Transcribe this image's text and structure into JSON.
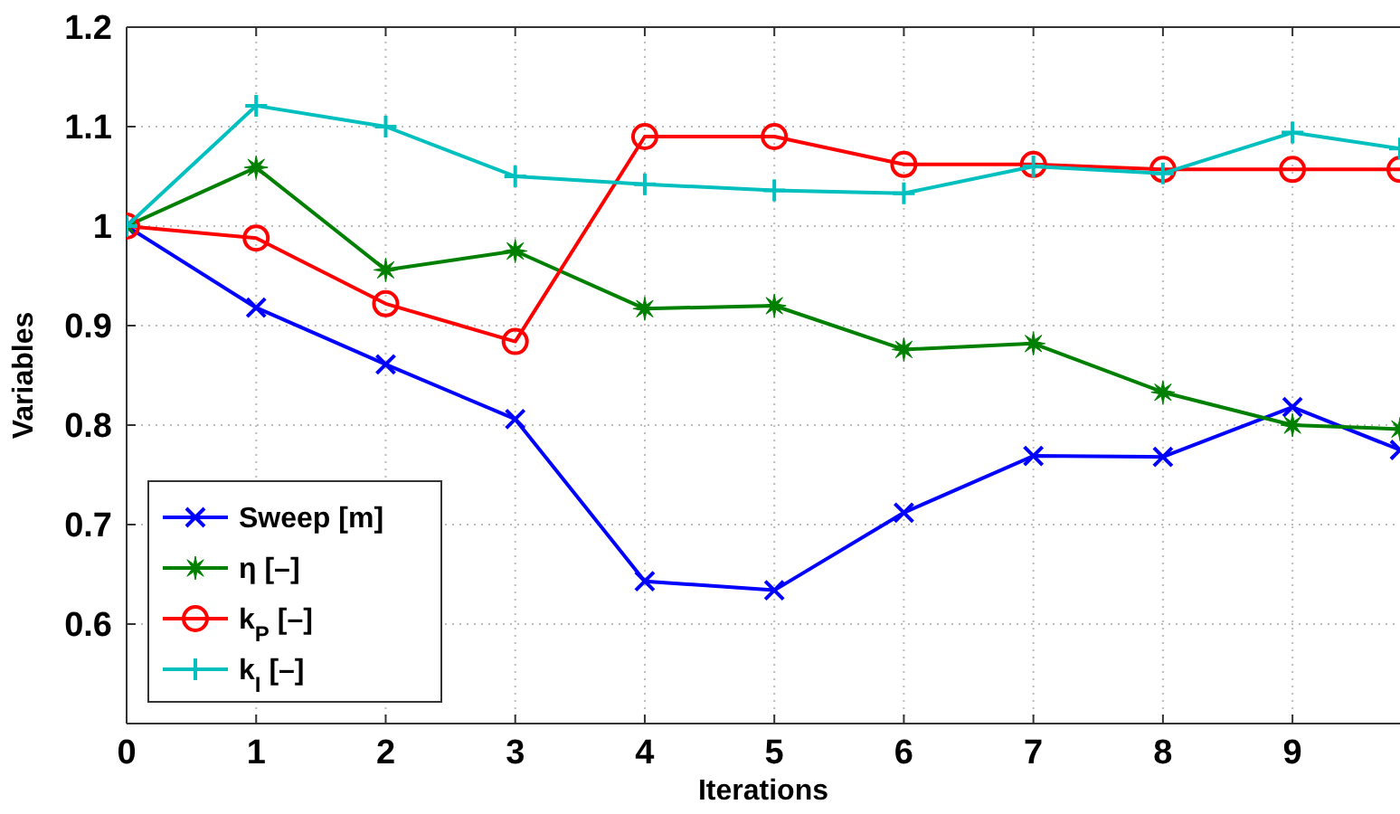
{
  "chart_data": {
    "type": "line",
    "xlabel": "Iterations",
    "ylabel": "Variables",
    "xlim": [
      0,
      9.83
    ],
    "xticks": [
      0,
      1,
      2,
      3,
      4,
      5,
      6,
      7,
      8,
      9
    ],
    "ylim": [
      0.5,
      1.2
    ],
    "yticks": [
      0.6,
      0.7,
      0.8,
      0.9,
      1,
      1.1,
      1.2
    ],
    "grid": true,
    "legend": "bottom left",
    "line_style": "solid",
    "x": [
      0,
      1,
      2,
      3,
      4,
      5,
      6,
      7,
      8,
      9,
      9.83
    ],
    "series": [
      {
        "name": "Sweep [m]",
        "color": "#0000ff",
        "marker": "cross",
        "values": [
          1,
          0.918,
          0.861,
          0.806,
          0.643,
          0.634,
          0.712,
          0.769,
          0.768,
          0.818,
          0.775
        ]
      },
      {
        "name": "η [–]",
        "color": "#008000",
        "marker": "star",
        "values": [
          1,
          1.059,
          0.956,
          0.975,
          0.917,
          0.92,
          0.876,
          0.882,
          0.833,
          0.8,
          0.796
        ]
      },
      {
        "name": "k$_{P}$ [–]",
        "color": "#ff0000",
        "marker": "circle",
        "values": [
          1,
          0.988,
          0.922,
          0.884,
          1.09,
          1.09,
          1.062,
          1.062,
          1.057,
          1.057,
          1.057
        ]
      },
      {
        "name": "k$_{I}$ [–]",
        "color": "#00bfbf",
        "marker": "plus",
        "values": [
          1,
          1.121,
          1.1,
          1.05,
          1.042,
          1.036,
          1.033,
          1.06,
          1.053,
          1.094,
          1.078
        ]
      }
    ]
  }
}
